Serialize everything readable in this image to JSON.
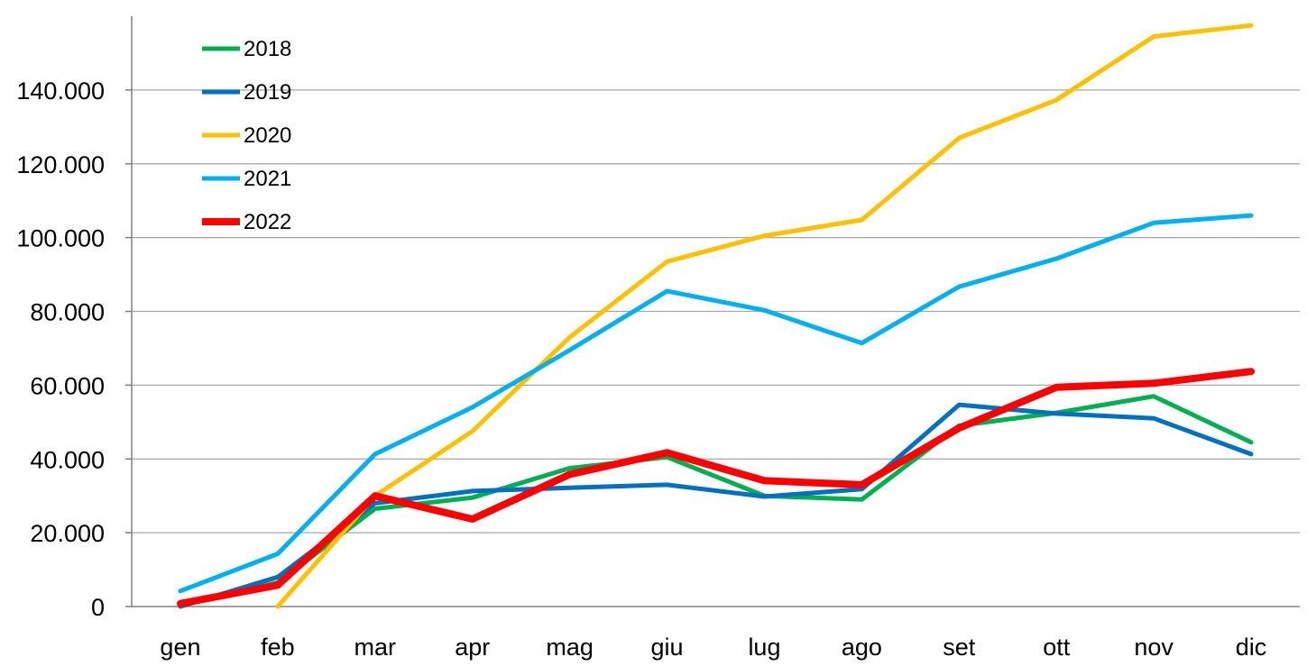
{
  "chart_data": {
    "type": "line",
    "categories": [
      "gen",
      "feb",
      "mar",
      "apr",
      "mag",
      "giu",
      "lug",
      "ago",
      "set",
      "ott",
      "nov",
      "dic"
    ],
    "ylim": [
      0,
      160000
    ],
    "yticks": [
      0,
      20000,
      40000,
      60000,
      80000,
      100000,
      120000,
      140000
    ],
    "ytick_labels": [
      "0",
      "20.000",
      "40.000",
      "60.000",
      "80.000",
      "100.000",
      "120.000",
      "140.000"
    ],
    "grid": "horizontal",
    "legend_position": "top-left",
    "series": [
      {
        "name": "2018",
        "color": "#00b050",
        "values": [
          200,
          6500,
          26500,
          29500,
          37500,
          40500,
          30000,
          29000,
          49000,
          52500,
          57000,
          44500
        ]
      },
      {
        "name": "2019",
        "color": "#0070c0",
        "values": [
          0,
          8000,
          28000,
          31300,
          32200,
          33000,
          29800,
          31800,
          54700,
          52300,
          51000,
          41300
        ]
      },
      {
        "name": "2020",
        "color": "#ffc000",
        "values": [
          null,
          0,
          30000,
          47500,
          73000,
          93500,
          100500,
          104800,
          127000,
          137300,
          154500,
          157500
        ]
      },
      {
        "name": "2021",
        "color": "#00b0f0",
        "values": [
          4200,
          14300,
          41300,
          54000,
          69500,
          85500,
          80300,
          71400,
          86700,
          94300,
          104000,
          106000
        ]
      },
      {
        "name": "2022",
        "color": "#ff0000",
        "values": [
          800,
          5800,
          30000,
          23700,
          35800,
          41700,
          34100,
          33000,
          48400,
          59400,
          60500,
          63700
        ]
      }
    ]
  }
}
